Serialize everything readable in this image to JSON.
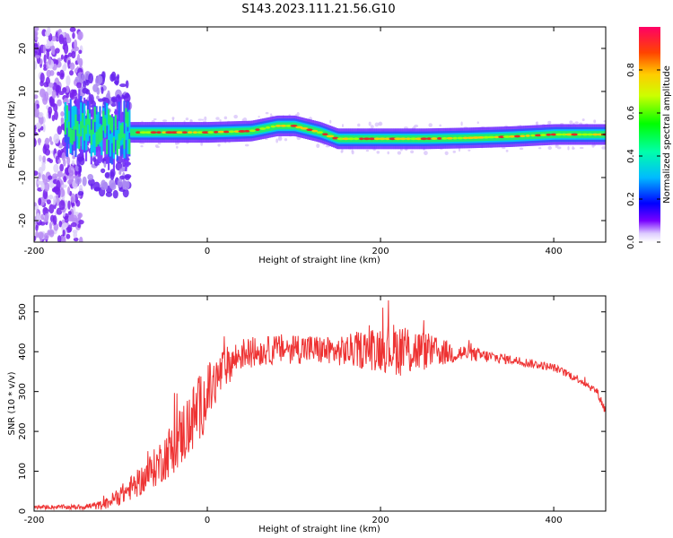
{
  "title": "S143.2023.111.21.56.G10",
  "chart_data": [
    {
      "type": "heatmap",
      "xlabel": "Height of straight line (km)",
      "ylabel": "Frequency (Hz)",
      "xlim": [
        -200,
        460
      ],
      "ylim": [
        -25,
        25
      ],
      "xticks": [
        -200,
        0,
        200,
        400
      ],
      "yticks": [
        -20,
        -10,
        0,
        10,
        20
      ],
      "colorbar": {
        "label": "Normalized spectral amplitude",
        "range": [
          0,
          1
        ],
        "ticks": [
          0.0,
          0.2,
          0.4,
          0.6,
          0.8
        ],
        "tick_labels": [
          "0.0",
          "0.2",
          "0.4",
          "0.6",
          "0.8"
        ]
      },
      "ridge": {
        "height_km": [
          -160,
          -120,
          -100,
          -90,
          -60,
          0,
          50,
          80,
          100,
          130,
          150,
          200,
          250,
          300,
          350,
          400,
          460
        ],
        "frequency_hz": [
          2,
          1,
          0.5,
          0.5,
          0.5,
          0.5,
          0.8,
          2,
          2,
          0.5,
          -1,
          -1,
          -1,
          -0.8,
          -0.5,
          0,
          0
        ]
      }
    },
    {
      "type": "line",
      "xlabel": "Height of straight line (km)",
      "ylabel": "SNR (10 * v/v)",
      "xlim": [
        -200,
        460
      ],
      "ylim": [
        0,
        540
      ],
      "xticks": [
        -200,
        0,
        200,
        400
      ],
      "yticks": [
        0,
        100,
        200,
        300,
        400,
        500
      ],
      "color": "#ee3333",
      "envelope": {
        "x": [
          -200,
          -150,
          -120,
          -100,
          -80,
          -60,
          -40,
          -20,
          0,
          20,
          40,
          60,
          100,
          150,
          200,
          230,
          260,
          300,
          350,
          400,
          430,
          450,
          460
        ],
        "center": [
          10,
          10,
          15,
          40,
          70,
          110,
          160,
          220,
          290,
          360,
          395,
          400,
          410,
          400,
          410,
          405,
          400,
          395,
          380,
          360,
          330,
          300,
          250
        ],
        "spread": [
          5,
          6,
          12,
          25,
          35,
          50,
          70,
          90,
          80,
          50,
          40,
          35,
          40,
          35,
          60,
          70,
          40,
          20,
          12,
          10,
          10,
          10,
          15
        ]
      }
    }
  ]
}
